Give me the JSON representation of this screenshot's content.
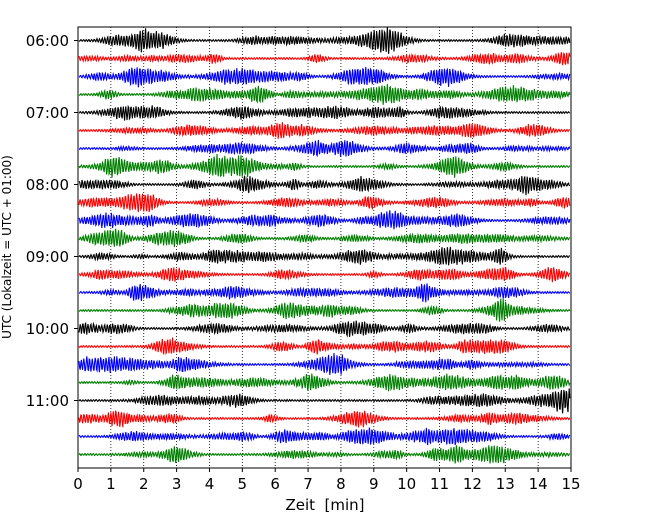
{
  "chart_data": {
    "type": "line",
    "title": "",
    "xlabel": "Zeit  [min]",
    "ylabel": "UTC (Lokalzeit = UTC + 01:00)",
    "xlim": [
      0,
      15
    ],
    "xticks": [
      0,
      1,
      2,
      3,
      4,
      5,
      6,
      7,
      8,
      9,
      10,
      11,
      12,
      13,
      14,
      15
    ],
    "y_tick_labels": [
      "06:00",
      "07:00",
      "08:00",
      "09:00",
      "10:00",
      "11:00"
    ],
    "row_start": "06:00",
    "row_interval_minutes": 15,
    "row_count": 24,
    "color_cycle": [
      "#000000",
      "#ff0000",
      "#0000ff",
      "#008000"
    ],
    "grid": "x-vertical-dotted",
    "legend": "none"
  }
}
